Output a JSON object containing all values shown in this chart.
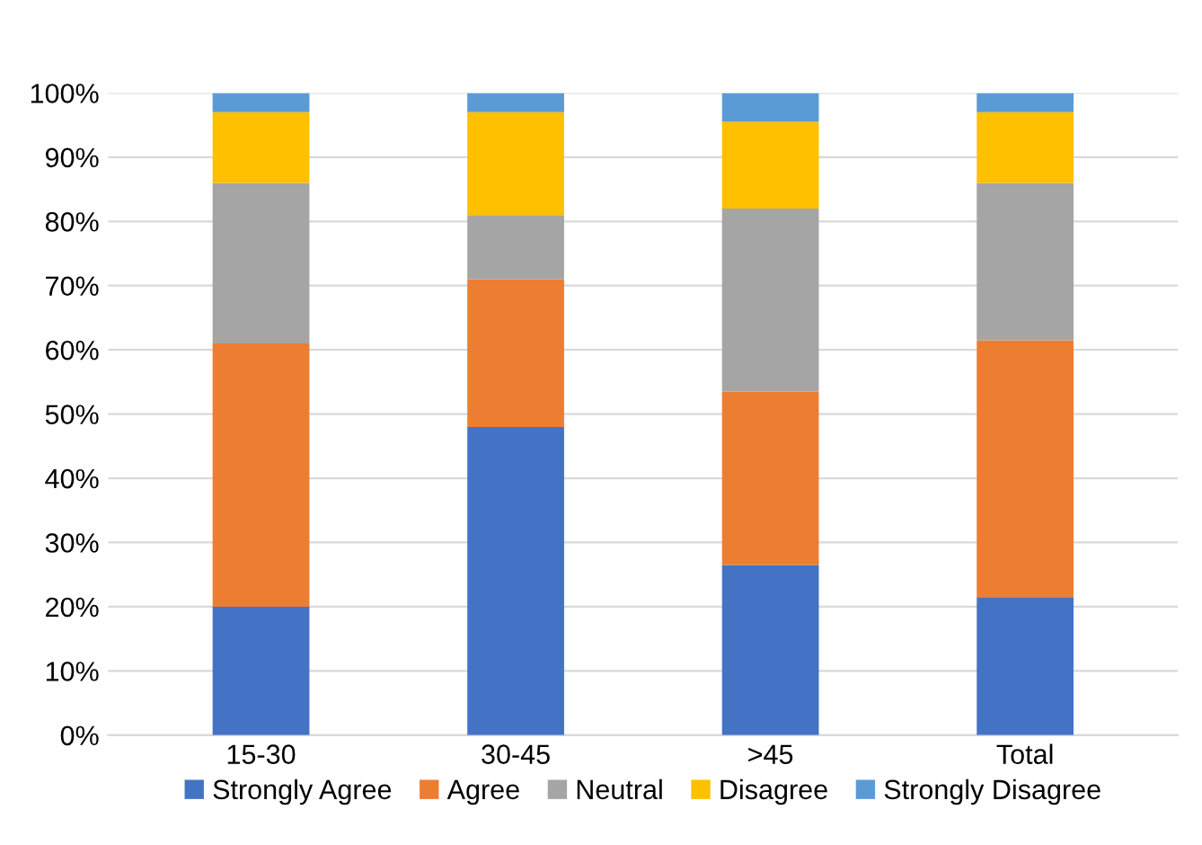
{
  "chart_data": {
    "type": "bar",
    "stacked": true,
    "categories": [
      "15-30",
      "30-45",
      ">45",
      "Total"
    ],
    "series": [
      {
        "name": "Strongly Agree",
        "color": "#4472c4",
        "values": [
          20,
          48,
          26.5,
          21.5
        ]
      },
      {
        "name": "Agree",
        "color": "#ed7d31",
        "values": [
          41,
          23,
          27,
          40
        ]
      },
      {
        "name": "Neutral",
        "color": "#a5a5a5",
        "values": [
          25,
          10,
          28.5,
          24.5
        ]
      },
      {
        "name": "Disagree",
        "color": "#ffc000",
        "values": [
          11,
          16,
          13.5,
          11
        ]
      },
      {
        "name": "Strongly Disagree",
        "color": "#5b9bd5",
        "values": [
          3,
          3,
          4.5,
          3
        ]
      }
    ],
    "ylim": [
      0,
      100
    ],
    "yticks": [
      {
        "value": 0,
        "label": "0%"
      },
      {
        "value": 10,
        "label": "10%"
      },
      {
        "value": 20,
        "label": "20%"
      },
      {
        "value": 30,
        "label": "30%"
      },
      {
        "value": 40,
        "label": "40%"
      },
      {
        "value": 50,
        "label": "50%"
      },
      {
        "value": 60,
        "label": "60%"
      },
      {
        "value": 70,
        "label": "70%"
      },
      {
        "value": 80,
        "label": "80%"
      },
      {
        "value": 90,
        "label": "90%"
      },
      {
        "value": 100,
        "label": "100%"
      }
    ],
    "grid": "y",
    "legend": "bottom"
  }
}
